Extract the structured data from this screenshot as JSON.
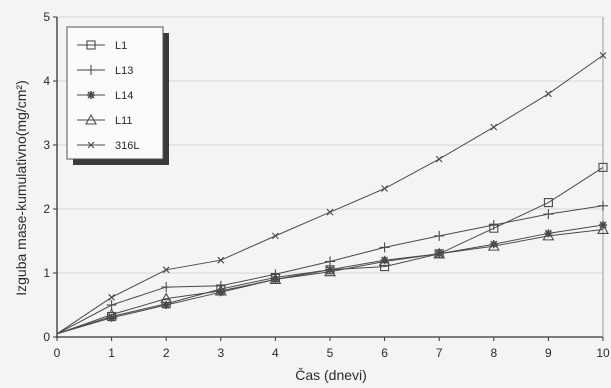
{
  "chart_data": {
    "type": "line",
    "title": "",
    "xlabel": "Čas (dnevi)",
    "ylabel": "Izguba mase-kumulativno(mg/cm²)",
    "x": [
      0,
      1,
      2,
      3,
      4,
      5,
      6,
      7,
      8,
      9,
      10
    ],
    "xlim": [
      0,
      10
    ],
    "ylim": [
      0,
      5
    ],
    "xticks": [
      "0",
      "1",
      "2",
      "3",
      "4",
      "5",
      "6",
      "7",
      "8",
      "9",
      "10"
    ],
    "yticks": [
      "0",
      "1",
      "2",
      "3",
      "4",
      "5"
    ],
    "grid": true,
    "legend_position": "top-left",
    "series": [
      {
        "name": "L1",
        "marker": "square",
        "values": [
          0.05,
          0.32,
          0.52,
          0.75,
          0.93,
          1.05,
          1.1,
          1.3,
          1.7,
          2.1,
          2.65
        ]
      },
      {
        "name": "L13",
        "marker": "cross",
        "values": [
          0.05,
          0.5,
          0.78,
          0.8,
          0.98,
          1.18,
          1.4,
          1.58,
          1.75,
          1.92,
          2.05
        ]
      },
      {
        "name": "L14",
        "marker": "star",
        "values": [
          0.05,
          0.3,
          0.5,
          0.7,
          0.9,
          1.05,
          1.2,
          1.3,
          1.45,
          1.62,
          1.75
        ]
      },
      {
        "name": "L11",
        "marker": "triangle",
        "values": [
          0.05,
          0.35,
          0.6,
          0.72,
          0.9,
          1.02,
          1.18,
          1.3,
          1.42,
          1.58,
          1.68
        ]
      },
      {
        "name": "316L",
        "marker": "x",
        "values": [
          0.05,
          0.62,
          1.05,
          1.2,
          1.58,
          1.95,
          2.32,
          2.78,
          3.28,
          3.8,
          4.4
        ]
      }
    ],
    "colors": {
      "line": "#4a4a4a",
      "grid": "#d6d6d6",
      "axis": "#333333",
      "background": "#f4f4f2"
    }
  }
}
